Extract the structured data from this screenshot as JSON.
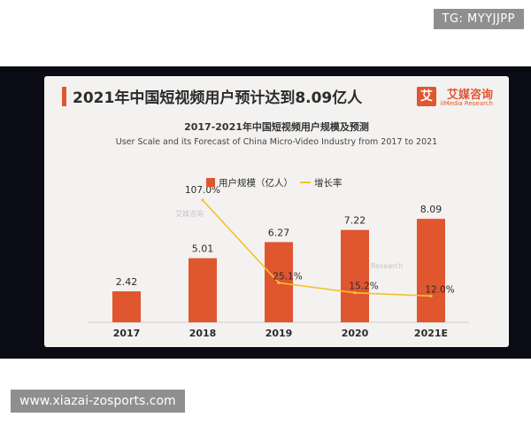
{
  "overlay": {
    "tg_label": "TG: MYYJJPP",
    "url_label": "www.xiazai-zosports.com"
  },
  "header": {
    "title": "2021年中国短视频用户预计达到8.09亿人",
    "logo_glyph": "艾",
    "logo_name": "艾媒咨询",
    "logo_sub": "iiMedia Research"
  },
  "chart_data": {
    "type": "bar",
    "title": "2017-2021年中国短视频用户规模及预测",
    "subtitle": "User Scale and its Forecast of China Micro-Video Industry from 2017 to 2021",
    "categories": [
      "2017",
      "2018",
      "2019",
      "2020",
      "2021E"
    ],
    "series": [
      {
        "name": "用户规模（亿人）",
        "type": "bar",
        "values": [
          2.42,
          5.01,
          6.27,
          7.22,
          8.09
        ],
        "labels": [
          "2.42",
          "5.01",
          "6.27",
          "7.22",
          "8.09"
        ]
      },
      {
        "name": "增长率",
        "type": "line",
        "values": [
          107.0,
          25.1,
          15.2,
          12.0
        ],
        "x": [
          "2018",
          "2019",
          "2020",
          "2021E"
        ],
        "labels": [
          "107.0%",
          "25.1%",
          "15.2%",
          "12.0%"
        ]
      }
    ],
    "ylim": [
      0,
      10
    ],
    "legend_position": "top-center",
    "grid": false,
    "colors": {
      "bar": "#e0562f",
      "line": "#f2c230"
    }
  },
  "watermarks": [
    "艾媒咨询",
    "iiMedia Research"
  ]
}
